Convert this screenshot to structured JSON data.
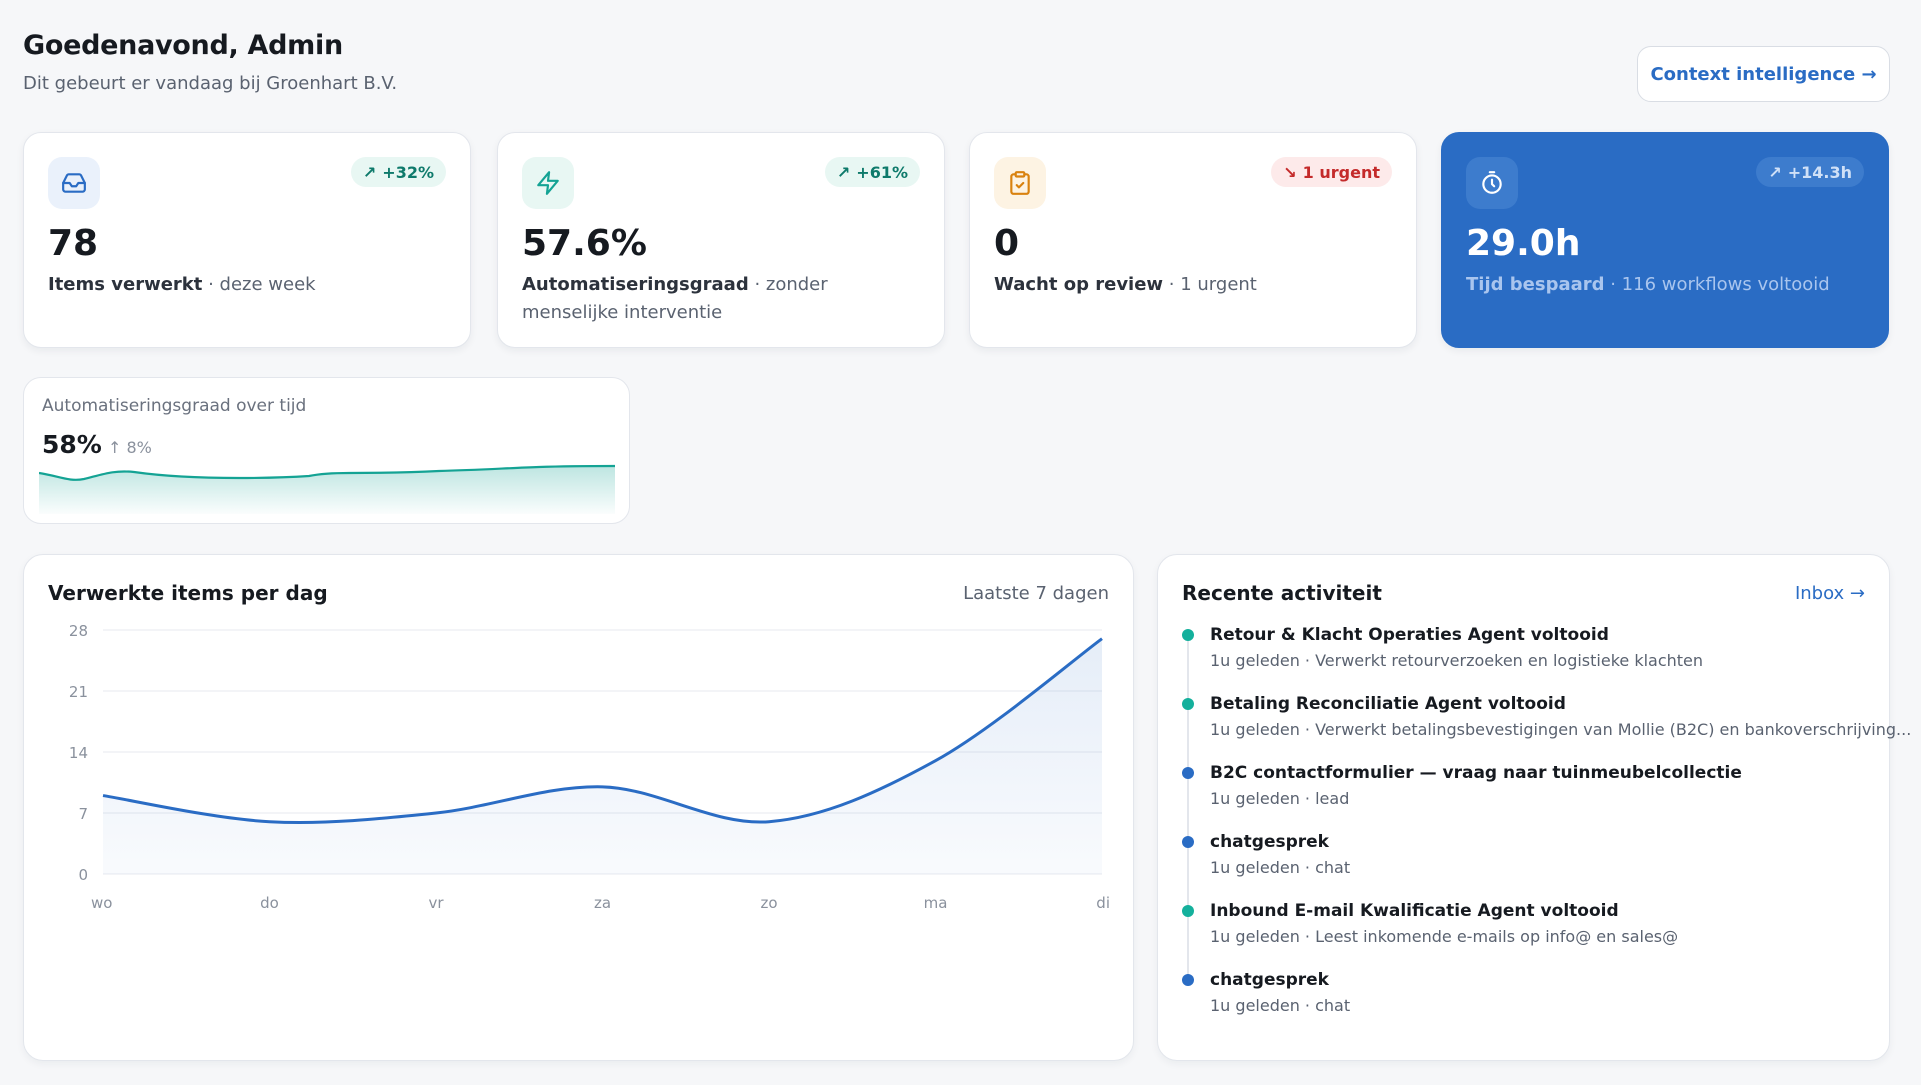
{
  "header": {
    "greeting": "Goedenavond, Admin",
    "subtitle": "Dit gebeurt er vandaag bij Groenhart B.V.",
    "context_button": "Context intelligence →"
  },
  "kpis": [
    {
      "icon": "inbox-icon",
      "badge": "+32%",
      "badge_dir": "up",
      "value": "78",
      "label": "Items verwerkt",
      "detail": " · deze week",
      "accent": "#2a6cc4",
      "icon_bg": "#eaf1fb",
      "badge_bg": "#e8f7f3",
      "badge_color": "#0e7a6b"
    },
    {
      "icon": "lightning-icon",
      "badge": "+61%",
      "badge_dir": "up",
      "value": "57.6%",
      "label": "Automatiseringsgraad",
      "detail": " · zonder menselijke interventie",
      "accent": "#14a394",
      "icon_bg": "#e8f7f3",
      "badge_bg": "#e8f7f3",
      "badge_color": "#0e7a6b"
    },
    {
      "icon": "clipboard-check-icon",
      "badge": "1 urgent",
      "badge_dir": "down",
      "value": "0",
      "label": "Wacht op review",
      "detail": " · 1 urgent",
      "accent": "#d9820f",
      "icon_bg": "#fdf3e3",
      "badge_bg": "#fdeaea",
      "badge_color": "#c42a2a"
    },
    {
      "icon": "stopwatch-icon",
      "badge": "+14.3h",
      "badge_dir": "up",
      "value": "29.0h",
      "label": "Tijd bespaard",
      "detail": " · 116 workflows voltooid",
      "accent": "#ffffff",
      "icon_bg": "#3d7ccd",
      "badge_bg": "#3d7ccd",
      "badge_color": "#cfe0f7"
    }
  ],
  "trend": {
    "title": "Automatiseringsgraad over tijd",
    "value": "58%",
    "delta": "↑ 8%",
    "color": "#14a394"
  },
  "chart_data": {
    "type": "area",
    "title": "Verwerkte items per dag",
    "range_label": "Laatste 7 dagen",
    "categories": [
      "wo",
      "do",
      "vr",
      "za",
      "zo",
      "ma",
      "di"
    ],
    "values": [
      9,
      6,
      7,
      10,
      6,
      13,
      27
    ],
    "ylim": [
      0,
      28
    ],
    "yticks": [
      0,
      7,
      14,
      21,
      28
    ],
    "grid": true,
    "color": "#2a6cc4"
  },
  "activity": {
    "title": "Recente activiteit",
    "link": "Inbox →",
    "items": [
      {
        "title": "Retour & Klacht Operaties Agent voltooid",
        "sub": "1u geleden · Verwerkt retourverzoeken en logistieke klachten",
        "color": "#14b09c"
      },
      {
        "title": "Betaling Reconciliatie Agent voltooid",
        "sub": "1u geleden · Verwerkt betalingsbevestigingen van Mollie (B2C) en bankoverschrijving...",
        "color": "#14b09c"
      },
      {
        "title": "B2C contactformulier — vraag naar tuinmeubelcollectie",
        "sub": "1u geleden · lead",
        "color": "#2a6cc4"
      },
      {
        "title": "chatgesprek",
        "sub": "1u geleden · chat",
        "color": "#2a6cc4"
      },
      {
        "title": "Inbound E-mail Kwalificatie Agent voltooid",
        "sub": "1u geleden · Leest inkomende e-mails op info@ en sales@",
        "color": "#14b09c"
      },
      {
        "title": "chatgesprek",
        "sub": "1u geleden · chat",
        "color": "#2a6cc4"
      }
    ]
  }
}
